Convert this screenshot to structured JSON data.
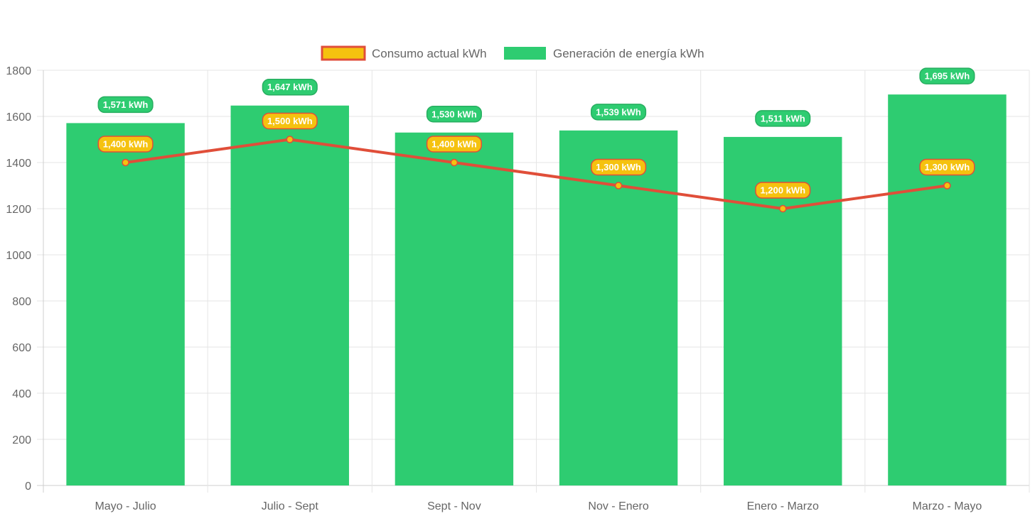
{
  "chart_data": {
    "type": "bar",
    "categories": [
      "Mayo - Julio",
      "Julio - Sept",
      "Sept - Nov",
      "Nov - Enero",
      "Enero - Marzo",
      "Marzo - Mayo"
    ],
    "series": [
      {
        "name": "Consumo actual kWh",
        "kind": "line",
        "values": [
          1400,
          1500,
          1400,
          1300,
          1200,
          1300
        ],
        "labels": [
          "1,400 kWh",
          "1,500 kWh",
          "1,400 kWh",
          "1,300 kWh",
          "1,200 kWh",
          "1,300 kWh"
        ],
        "line_color": "#e04e39",
        "fill_color": "#f5c20f"
      },
      {
        "name": "Generación de energía kWh",
        "kind": "bar",
        "values": [
          1571,
          1647,
          1530,
          1539,
          1511,
          1695
        ],
        "labels": [
          "1,571 kWh",
          "1,647 kWh",
          "1,530 kWh",
          "1,539 kWh",
          "1,511 kWh",
          "1,695 kWh"
        ],
        "color": "#2ecc71",
        "label_border": "#27ae60"
      }
    ],
    "y_ticks": [
      "0",
      "200",
      "400",
      "600",
      "800",
      "1000",
      "1200",
      "1400",
      "1600",
      "1800"
    ],
    "ylim": [
      0,
      1800
    ],
    "grid": true,
    "legend": "top-center",
    "title": "",
    "xlabel": "",
    "ylabel": ""
  }
}
